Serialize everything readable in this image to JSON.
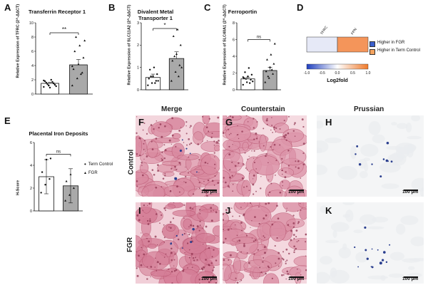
{
  "panels": {
    "A": {
      "letter": "A",
      "title": "Transferrin Receptor 1",
      "ylabel": "Relative Expression of TFRC (2^-ΔΔCT)"
    },
    "B": {
      "letter": "B",
      "title": "Divalent Metal Transporter 1",
      "ylabel": "Relative Expression of SLC11A2 (2^-ΔΔCT)"
    },
    "C": {
      "letter": "C",
      "title": "Ferroportin",
      "ylabel": "Relative Expression of SLC40A1 (2^-ΔΔCT)"
    },
    "D": {
      "letter": "D"
    },
    "E": {
      "letter": "E",
      "title": "Placental Iron Deposits",
      "ylabel": "H-Score"
    },
    "F": {
      "letter": "F"
    },
    "G": {
      "letter": "G"
    },
    "H": {
      "letter": "H"
    },
    "I": {
      "letter": "I"
    },
    "J": {
      "letter": "J"
    },
    "K": {
      "letter": "K"
    }
  },
  "histology": {
    "columns": [
      "Merge",
      "Counterstain",
      "Prussian"
    ],
    "rows": [
      "Control",
      "FGR"
    ],
    "scale_label": "100 µm"
  },
  "chart_data": [
    {
      "panel": "A",
      "type": "bar",
      "title": "Transferrin Receptor 1",
      "ylabel": "Relative Expression of TFRC (2^-ΔΔCT)",
      "ylim": [
        0,
        10
      ],
      "yticks": [
        0,
        2,
        4,
        6,
        8,
        10
      ],
      "categories": [
        "Term Control",
        "FGR"
      ],
      "values": [
        1.5,
        4.1
      ],
      "errors": [
        0.15,
        0.75
      ],
      "points": [
        [
          1.0,
          1.2,
          1.5,
          1.8,
          0.9,
          1.3,
          1.6,
          2.0,
          1.1,
          1.4,
          1.7,
          1.9,
          1.2,
          1.5
        ],
        [
          1.2,
          2.2,
          3.0,
          3.5,
          4.2,
          5.1,
          6.0,
          6.8,
          7.5,
          8.0,
          2.8,
          3.9
        ]
      ],
      "significance": "**",
      "colors": [
        "#ffffff",
        "#a9a9a9"
      ]
    },
    {
      "panel": "B",
      "type": "bar",
      "title": "Divalent Metal Transporter 1",
      "ylabel": "Relative Expression of SLC11A2 (2^-ΔΔCT)",
      "ylim": [
        0,
        3
      ],
      "yticks": [
        0,
        1,
        2,
        3
      ],
      "categories": [
        "Term Control",
        "FGR"
      ],
      "values": [
        0.55,
        1.4
      ],
      "errors": [
        0.15,
        0.3
      ],
      "points": [
        [
          0.2,
          0.3,
          0.4,
          0.5,
          0.6,
          0.7,
          0.9,
          1.0,
          0.4,
          0.6,
          0.3
        ],
        [
          0.4,
          0.8,
          1.1,
          1.3,
          1.6,
          2.0,
          2.4,
          2.7,
          1.0,
          1.5,
          0.6
        ]
      ],
      "significance": "*",
      "colors": [
        "#ffffff",
        "#a9a9a9"
      ]
    },
    {
      "panel": "C",
      "type": "bar",
      "title": "Ferroportin",
      "ylabel": "Relative Expression of SLC40A1 (2^-ΔΔCT)",
      "ylim": [
        0,
        8
      ],
      "yticks": [
        0,
        2,
        4,
        6,
        8
      ],
      "categories": [
        "Term Control",
        "FGR"
      ],
      "values": [
        1.3,
        2.3
      ],
      "errors": [
        0.2,
        0.4
      ],
      "points": [
        [
          0.6,
          0.9,
          1.2,
          1.4,
          1.6,
          1.8,
          2.1,
          2.6,
          1.0,
          1.3,
          0.8,
          1.5
        ],
        [
          0.9,
          1.4,
          1.9,
          2.2,
          2.7,
          3.1,
          3.6,
          4.2,
          5.5,
          1.6,
          2.4
        ]
      ],
      "significance": "ns",
      "colors": [
        "#ffffff",
        "#a9a9a9"
      ]
    },
    {
      "panel": "D",
      "type": "heatmap",
      "columns": [
        "TFRC",
        "FPN"
      ],
      "values": [
        -0.6,
        0.9
      ],
      "colorbar_range": [
        -1.0,
        1.0
      ],
      "colorbar_ticks": [
        "-1.0",
        "-0.5",
        "0.0",
        "0.5",
        "1.0"
      ],
      "colorbar_label": "Log2fold",
      "legend": [
        {
          "label": "Higher in FGR",
          "color": "#3a5fcd"
        },
        {
          "label": "Higher in Term Control",
          "color": "#f4a460"
        }
      ]
    },
    {
      "panel": "E",
      "type": "bar",
      "title": "Placental Iron Deposits",
      "ylabel": "H-Score",
      "ylim": [
        0,
        6
      ],
      "yticks": [
        0,
        2,
        4,
        6
      ],
      "categories": [
        "Term Control",
        "FGR"
      ],
      "values": [
        3.0,
        2.2
      ],
      "errors": [
        1.5,
        1.5
      ],
      "points": [
        [
          1.6,
          2.3,
          2.8,
          3.4,
          4.5,
          4.6
        ],
        [
          0.9,
          1.4,
          2.0,
          2.6,
          3.2
        ]
      ],
      "significance": "ns",
      "legend": [
        "Term Control",
        "FGR"
      ],
      "colors": [
        "#ffffff",
        "#a9a9a9"
      ]
    }
  ]
}
